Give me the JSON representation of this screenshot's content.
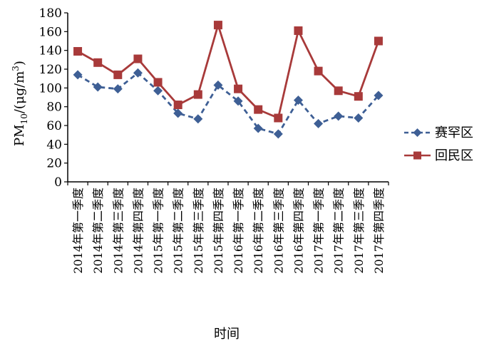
{
  "chart_data": {
    "type": "line",
    "categories": [
      "2014年第一季度",
      "2014年第二季度",
      "2014年第三季度",
      "2014年第四季度",
      "2015年第一季度",
      "2015年第二季度",
      "2015年第三季度",
      "2015年第四季度",
      "2016年第一季度",
      "2016年第二季度",
      "2016年第三季度",
      "2016年第四季度",
      "2017年第一季度",
      "2017年第二季度",
      "2017年第三季度",
      "2017年第四季度"
    ],
    "series": [
      {
        "name": "赛罕区",
        "color": "#3e5f95",
        "marker": "diamond",
        "line_style": "dashed",
        "values": [
          114,
          101,
          99,
          116,
          97,
          73,
          67,
          103,
          86,
          57,
          51,
          87,
          62,
          70,
          68,
          92
        ]
      },
      {
        "name": "回民区",
        "color": "#a83a3a",
        "marker": "square",
        "line_style": "solid",
        "values": [
          139,
          127,
          114,
          131,
          106,
          82,
          93,
          167,
          99,
          77,
          68,
          161,
          118,
          97,
          91,
          150
        ]
      }
    ],
    "xlabel": "时间",
    "ylabel": "PM10/(μg/m3)",
    "ylim": [
      0,
      180
    ],
    "yticks": [
      0,
      20,
      40,
      60,
      80,
      100,
      120,
      140,
      160,
      180
    ],
    "grid": false,
    "legend_position": "right"
  }
}
